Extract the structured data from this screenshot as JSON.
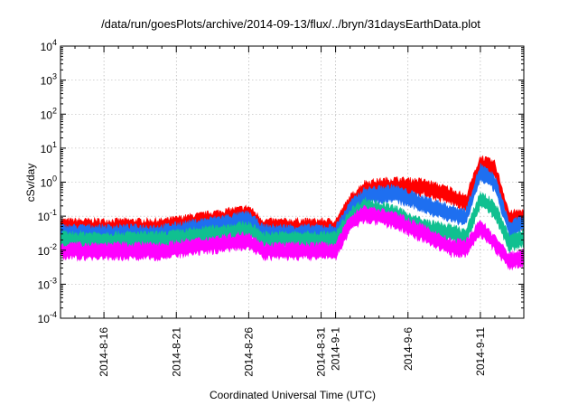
{
  "chart_data": {
    "type": "line",
    "title": "/data/run/goesPlots/archive/2014-09-13/flux/../bryn/31daysEarthData.plot",
    "xlabel": "Coordinated Universal Time (UTC)",
    "ylabel": "cSv/day",
    "y_scale": "log",
    "ylim_exp": [
      -4,
      4
    ],
    "y_ticks": [
      {
        "exp": -4,
        "base": "10",
        "sup": "-4"
      },
      {
        "exp": -3,
        "base": "10",
        "sup": "-3"
      },
      {
        "exp": -2,
        "base": "10",
        "sup": "-2"
      },
      {
        "exp": -1,
        "base": "10",
        "sup": "-1"
      },
      {
        "exp": 0,
        "base": "10",
        "sup": "0"
      },
      {
        "exp": 1,
        "base": "10",
        "sup": "1"
      },
      {
        "exp": 2,
        "base": "10",
        "sup": "2"
      },
      {
        "exp": 3,
        "base": "10",
        "sup": "3"
      },
      {
        "exp": 4,
        "base": "10",
        "sup": "4"
      }
    ],
    "x_range_days": [
      "2014-08-13",
      "2014-09-14"
    ],
    "x_ticks": [
      "2014-8-16",
      "2014-8-21",
      "2014-8-26",
      "2014-8-31",
      "2014-9-1",
      "2014-9-6",
      "2014-9-11"
    ],
    "grid": true,
    "series": [
      {
        "color": "#ff0000",
        "points": [
          [
            "2014-08-13",
            0.06
          ],
          [
            "2014-08-20",
            0.06
          ],
          [
            "2014-08-26",
            0.15
          ],
          [
            "2014-08-27",
            0.06
          ],
          [
            "2014-09-01",
            0.06
          ],
          [
            "2014-09-02",
            0.3
          ],
          [
            "2014-09-03",
            0.8
          ],
          [
            "2014-09-05",
            1.0
          ],
          [
            "2014-09-07",
            0.9
          ],
          [
            "2014-09-09",
            0.5
          ],
          [
            "2014-09-10",
            0.3
          ],
          [
            "2014-09-11",
            4.5
          ],
          [
            "2014-09-12",
            3.0
          ],
          [
            "2014-09-13",
            0.1
          ],
          [
            "2014-09-14",
            0.12
          ]
        ]
      },
      {
        "color": "#1e6ff0",
        "points": [
          [
            "2014-08-13",
            0.04
          ],
          [
            "2014-08-20",
            0.04
          ],
          [
            "2014-08-26",
            0.1
          ],
          [
            "2014-08-27",
            0.04
          ],
          [
            "2014-09-01",
            0.04
          ],
          [
            "2014-09-02",
            0.2
          ],
          [
            "2014-09-03",
            0.5
          ],
          [
            "2014-09-05",
            0.6
          ],
          [
            "2014-09-07",
            0.3
          ],
          [
            "2014-09-09",
            0.15
          ],
          [
            "2014-09-10",
            0.12
          ],
          [
            "2014-09-11",
            2.5
          ],
          [
            "2014-09-12",
            1.2
          ],
          [
            "2014-09-13",
            0.05
          ],
          [
            "2014-09-14",
            0.08
          ]
        ]
      },
      {
        "color": "#10c090",
        "points": [
          [
            "2014-08-13",
            0.025
          ],
          [
            "2014-08-20",
            0.025
          ],
          [
            "2014-08-26",
            0.05
          ],
          [
            "2014-08-27",
            0.025
          ],
          [
            "2014-09-01",
            0.025
          ],
          [
            "2014-09-02",
            0.12
          ],
          [
            "2014-09-03",
            0.25
          ],
          [
            "2014-09-05",
            0.15
          ],
          [
            "2014-09-07",
            0.06
          ],
          [
            "2014-09-09",
            0.04
          ],
          [
            "2014-09-10",
            0.03
          ],
          [
            "2014-09-11",
            0.4
          ],
          [
            "2014-09-12",
            0.2
          ],
          [
            "2014-09-13",
            0.02
          ],
          [
            "2014-09-14",
            0.03
          ]
        ]
      },
      {
        "color": "#ff00ff",
        "points": [
          [
            "2014-08-13",
            0.012
          ],
          [
            "2014-08-20",
            0.012
          ],
          [
            "2014-08-26",
            0.025
          ],
          [
            "2014-08-27",
            0.012
          ],
          [
            "2014-09-01",
            0.012
          ],
          [
            "2014-09-02",
            0.08
          ],
          [
            "2014-09-03",
            0.15
          ],
          [
            "2014-09-05",
            0.1
          ],
          [
            "2014-09-07",
            0.04
          ],
          [
            "2014-09-09",
            0.015
          ],
          [
            "2014-09-10",
            0.015
          ],
          [
            "2014-09-11",
            0.06
          ],
          [
            "2014-09-12",
            0.02
          ],
          [
            "2014-09-13",
            0.006
          ],
          [
            "2014-09-14",
            0.008
          ]
        ]
      }
    ]
  }
}
